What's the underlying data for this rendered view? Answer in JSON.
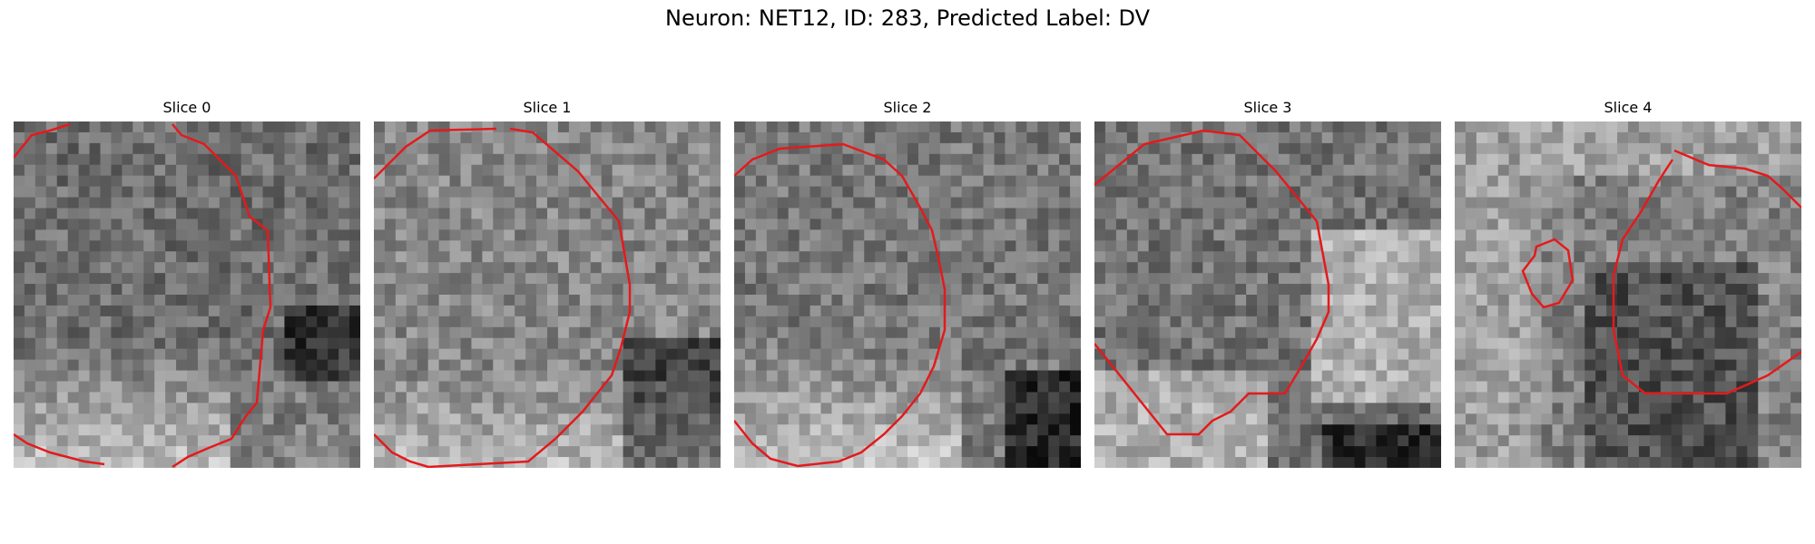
{
  "figure": {
    "title": "Neuron: NET12, ID: 283, Predicted Label: DV"
  },
  "panels": [
    {
      "title": "Slice 0"
    },
    {
      "title": "Slice 1"
    },
    {
      "title": "Slice 2"
    },
    {
      "title": "Slice 3"
    },
    {
      "title": "Slice 4"
    }
  ],
  "colors": {
    "contour": "#e41a1c"
  }
}
